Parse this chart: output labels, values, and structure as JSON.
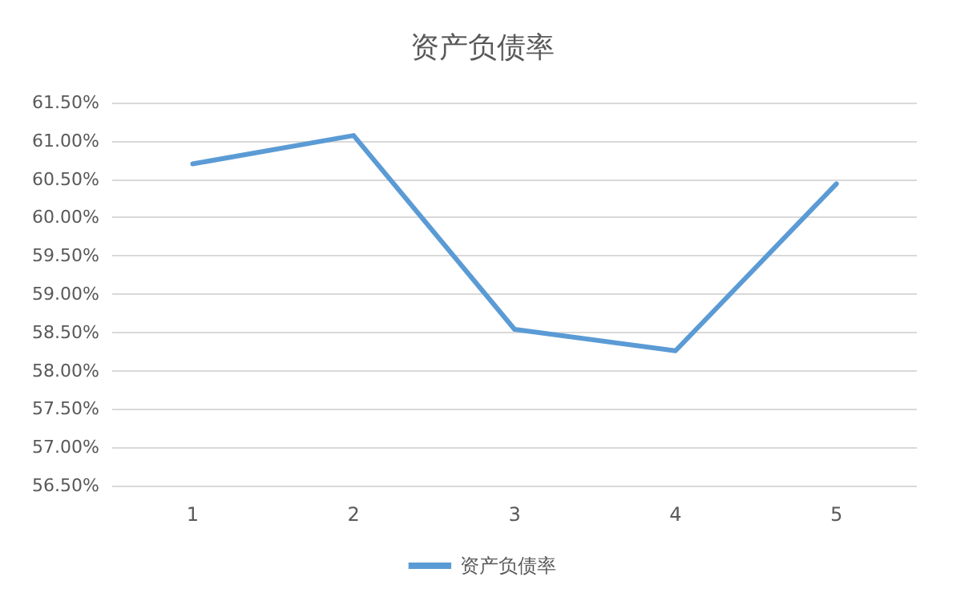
{
  "chart_data": {
    "type": "line",
    "title": "资产负债率",
    "categories": [
      "1",
      "2",
      "3",
      "4",
      "5"
    ],
    "series": [
      {
        "name": "资产负债率",
        "color": "#5b9bd5",
        "values": [
          60.7,
          61.07,
          58.54,
          58.26,
          60.44
        ]
      }
    ],
    "ylim": [
      56.5,
      61.5
    ],
    "yticks": [
      {
        "value": 56.5,
        "label": "56.50%"
      },
      {
        "value": 57,
        "label": "57.00%"
      },
      {
        "value": 57.5,
        "label": "57.50%"
      },
      {
        "value": 58,
        "label": "58.00%"
      },
      {
        "value": 58.5,
        "label": "58.50%"
      },
      {
        "value": 59,
        "label": "59.00%"
      },
      {
        "value": 59.5,
        "label": "59.50%"
      },
      {
        "value": 60,
        "label": "60.00%"
      },
      {
        "value": 60.5,
        "label": "60.50%"
      },
      {
        "value": 61,
        "label": "61.00%"
      },
      {
        "value": 61.5,
        "label": "61.50%"
      }
    ],
    "grid": "y",
    "legend": "bottom",
    "marker": "none",
    "line_style": "solid"
  }
}
